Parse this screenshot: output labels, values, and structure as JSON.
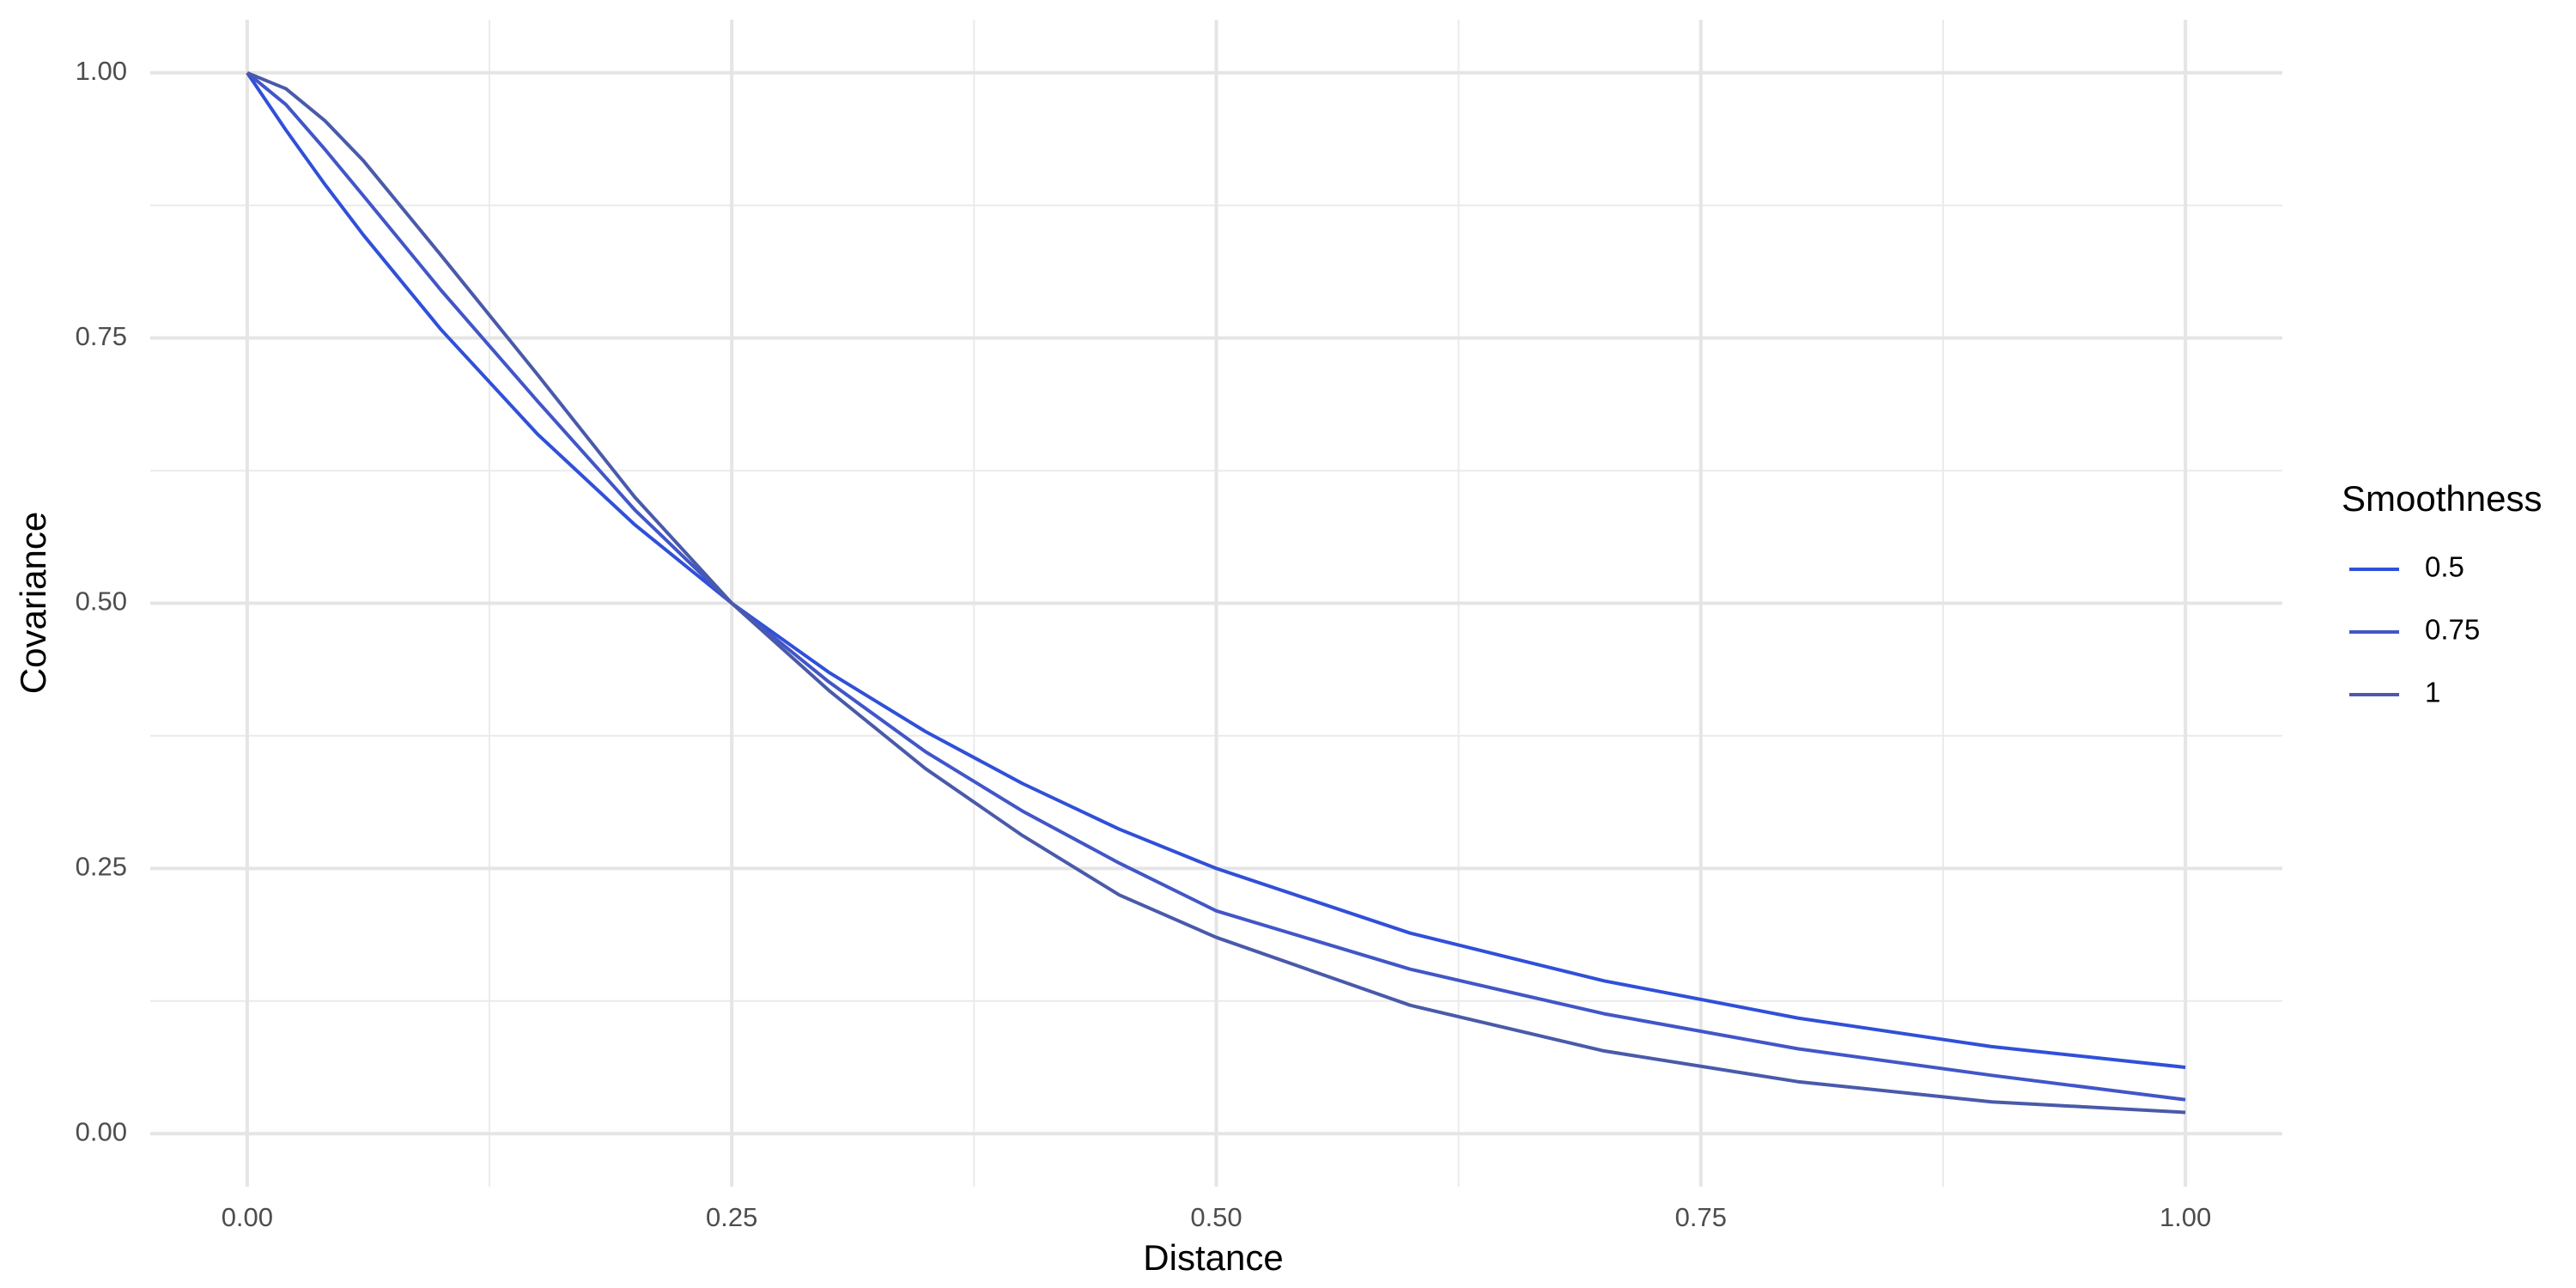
{
  "chart_data": {
    "type": "line",
    "x_label": "Distance",
    "y_label": "Covariance",
    "legend_title": "Smoothness",
    "x": [
      0,
      0.02,
      0.04,
      0.06,
      0.1,
      0.15,
      0.2,
      0.25,
      0.3,
      0.35,
      0.4,
      0.45,
      0.5,
      0.6,
      0.7,
      0.8,
      0.9,
      1.0
    ],
    "series": [
      {
        "name": "0.5",
        "color": "#3050d8",
        "values": [
          1,
          0.946,
          0.895,
          0.847,
          0.758,
          0.659,
          0.574,
          0.5,
          0.435,
          0.379,
          0.33,
          0.287,
          0.25,
          0.189,
          0.144,
          0.109,
          0.082,
          0.0625
        ]
      },
      {
        "name": "0.75",
        "color": "#4256c8",
        "values": [
          1,
          0.97,
          0.928,
          0.884,
          0.795,
          0.69,
          0.588,
          0.5,
          0.426,
          0.36,
          0.304,
          0.255,
          0.21,
          0.155,
          0.113,
          0.08,
          0.055,
          0.032
        ]
      },
      {
        "name": "1",
        "color": "#4a5aaa",
        "values": [
          1,
          0.985,
          0.955,
          0.917,
          0.828,
          0.715,
          0.6,
          0.5,
          0.418,
          0.344,
          0.281,
          0.225,
          0.185,
          0.121,
          0.078,
          0.049,
          0.03,
          0.02
        ]
      }
    ],
    "xlim": [
      -0.05,
      1.05
    ],
    "ylim": [
      -0.05,
      1.05
    ],
    "xticks": [
      {
        "value": 0,
        "label": "0.00"
      },
      {
        "value": 0.25,
        "label": "0.25"
      },
      {
        "value": 0.5,
        "label": "0.50"
      },
      {
        "value": 0.75,
        "label": "0.75"
      },
      {
        "value": 1,
        "label": "1.00"
      }
    ],
    "yticks": [
      {
        "value": 0,
        "label": "0.00"
      },
      {
        "value": 0.25,
        "label": "0.25"
      },
      {
        "value": 0.5,
        "label": "0.50"
      },
      {
        "value": 0.75,
        "label": "0.75"
      },
      {
        "value": 1,
        "label": "1.00"
      }
    ],
    "grid": true
  }
}
